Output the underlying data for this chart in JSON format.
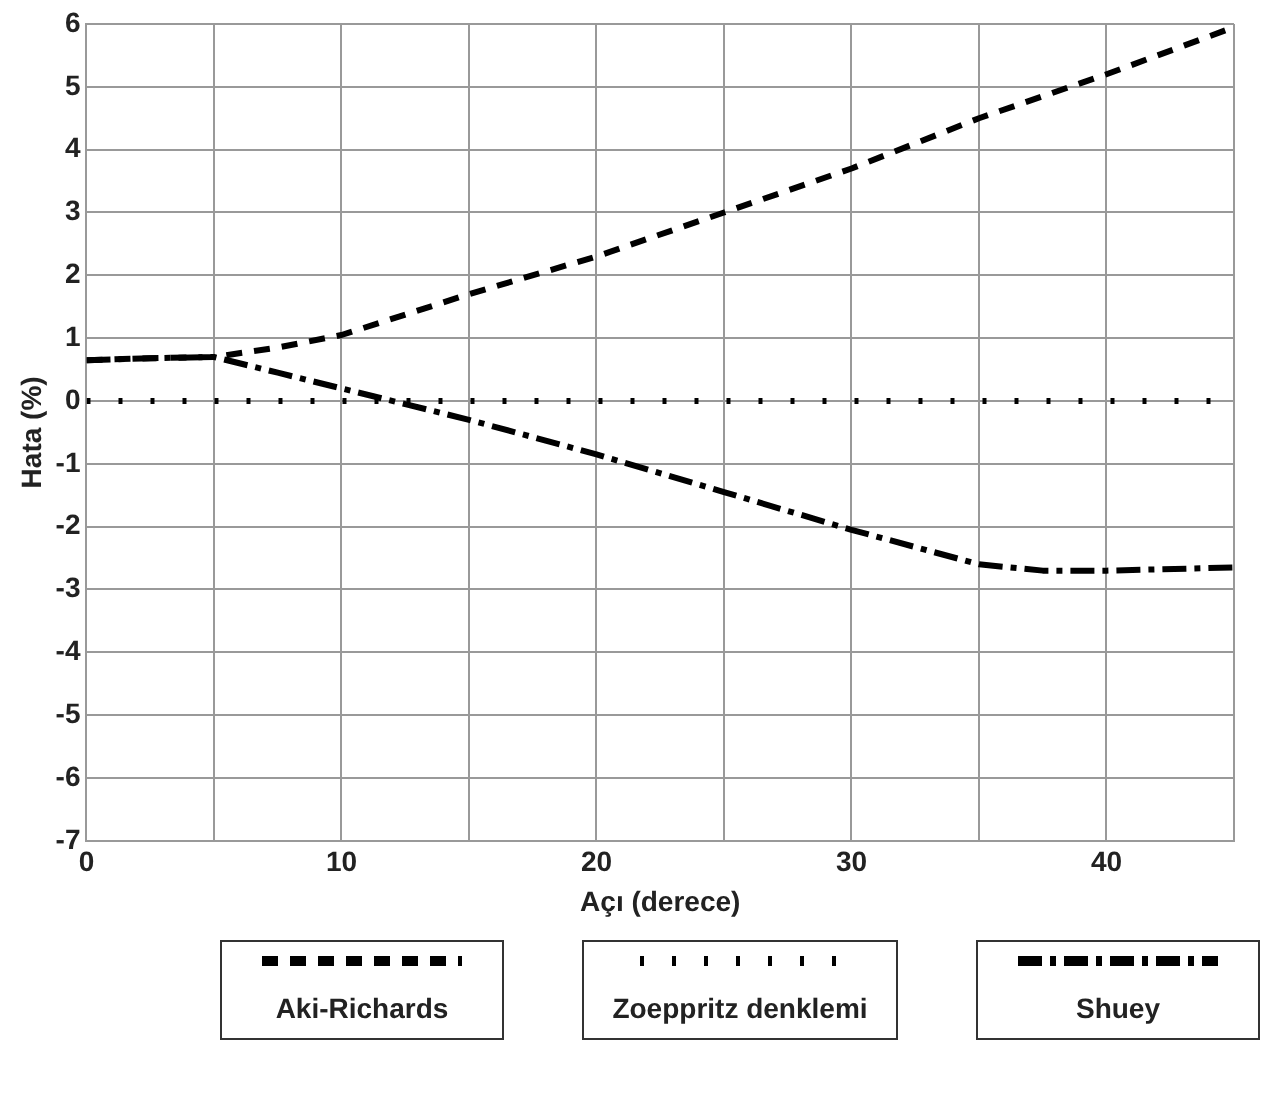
{
  "chart_data": {
    "type": "line",
    "xlabel": "Açı (derece)",
    "ylabel": "Hata (%)",
    "xlim": [
      0,
      45
    ],
    "xticks": [
      0,
      {
        "value": 5,
        "label": null
      },
      10,
      {
        "value": 15,
        "label": null
      },
      20,
      {
        "value": 25,
        "label": null
      },
      30,
      {
        "value": 35,
        "label": null
      },
      40,
      {
        "value": 45,
        "label": null
      }
    ],
    "ylim": [
      -7,
      6
    ],
    "yticks": [
      -7,
      -6,
      -5,
      -4,
      -3,
      -2,
      -1,
      0,
      1,
      2,
      3,
      4,
      5,
      6
    ],
    "grid": true,
    "legend": "bottom",
    "marker": "none",
    "series": [
      {
        "name": "Aki-Richards",
        "color": "#000000",
        "line_style": "dashed",
        "x": [
          0,
          2.5,
          5,
          7.5,
          10,
          15,
          20,
          25,
          30,
          35,
          40,
          45
        ],
        "values": [
          0.65,
          0.68,
          0.7,
          0.85,
          1.05,
          1.7,
          2.3,
          3.0,
          3.7,
          4.5,
          5.2,
          5.95
        ]
      },
      {
        "name": "Zoeppritz denklemi",
        "color": "#000000",
        "line_style": "dotted",
        "x": [
          0,
          45
        ],
        "values": [
          0,
          0
        ]
      },
      {
        "name": "Shuey",
        "color": "#000000",
        "line_style": "dashdot",
        "x": [
          0,
          2.5,
          5,
          7.5,
          10,
          12.5,
          15,
          20,
          25,
          30,
          35,
          37.5,
          40,
          45
        ],
        "values": [
          0.65,
          0.68,
          0.7,
          0.45,
          0.2,
          -0.05,
          -0.3,
          -0.85,
          -1.45,
          -2.05,
          -2.6,
          -2.7,
          -2.7,
          -2.65
        ]
      }
    ]
  }
}
